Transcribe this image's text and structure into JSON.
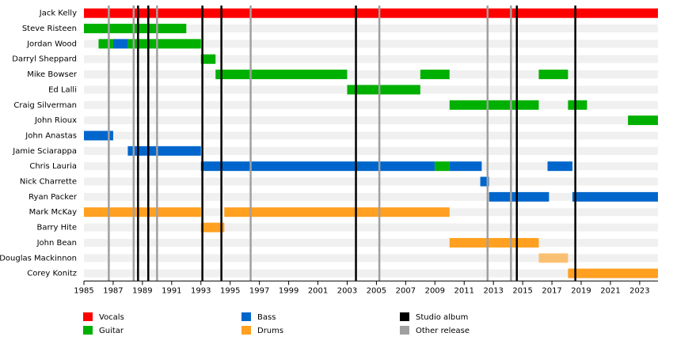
{
  "chart_data": {
    "type": "timeline",
    "xlim": [
      1985,
      2024.25
    ],
    "xticks": [
      1985,
      1987,
      1989,
      1991,
      1993,
      1995,
      1997,
      1999,
      2001,
      2003,
      2005,
      2007,
      2009,
      2011,
      2013,
      2015,
      2017,
      2019,
      2021,
      2023
    ],
    "roles": [
      {
        "name": "Vocals",
        "color": "#ff0000"
      },
      {
        "name": "Guitar",
        "color": "#00b000"
      },
      {
        "name": "Bass",
        "color": "#0066cc"
      },
      {
        "name": "Drums",
        "color": "#ffa020"
      }
    ],
    "events": [
      {
        "name": "Studio album",
        "color": "#000000",
        "x": [
          1988.7,
          1989.4,
          1993.1,
          1994.4,
          2003.6,
          2014.6,
          2018.6
        ]
      },
      {
        "name": "Other release",
        "color": "#a0a0a0",
        "x": [
          1986.7,
          1988.4,
          1990.0,
          1996.4,
          2005.2,
          2012.6,
          2014.2
        ]
      }
    ],
    "members": [
      {
        "name": "Jack Kelly",
        "segments": [
          {
            "role": "Vocals",
            "start": 1985,
            "end": 2024.25
          }
        ]
      },
      {
        "name": "Steve Risteen",
        "segments": [
          {
            "role": "Guitar",
            "start": 1985,
            "end": 1992
          }
        ]
      },
      {
        "name": "Jordan Wood",
        "segments": [
          {
            "role": "Guitar",
            "start": 1986,
            "end": 1987
          },
          {
            "role": "Bass",
            "start": 1987,
            "end": 1988
          },
          {
            "role": "Guitar",
            "start": 1988,
            "end": 1993
          }
        ]
      },
      {
        "name": "Darryl Sheppard",
        "segments": [
          {
            "role": "Guitar",
            "start": 1993,
            "end": 1994
          }
        ]
      },
      {
        "name": "Mike Bowser",
        "segments": [
          {
            "role": "Guitar",
            "start": 1994,
            "end": 2003
          },
          {
            "role": "Guitar",
            "start": 2008,
            "end": 2010
          },
          {
            "role": "Guitar",
            "start": 2016.1,
            "end": 2018.1
          }
        ]
      },
      {
        "name": "Ed Lalli",
        "segments": [
          {
            "role": "Guitar",
            "start": 2003,
            "end": 2008
          }
        ]
      },
      {
        "name": "Craig Silverman",
        "segments": [
          {
            "role": "Guitar",
            "start": 2010,
            "end": 2016.1
          },
          {
            "role": "Guitar",
            "start": 2018.1,
            "end": 2019.4
          }
        ]
      },
      {
        "name": "John Rioux",
        "segments": [
          {
            "role": "Guitar",
            "start": 2022.2,
            "end": 2024.25
          }
        ]
      },
      {
        "name": "John Anastas",
        "segments": [
          {
            "role": "Bass",
            "start": 1985,
            "end": 1987
          }
        ]
      },
      {
        "name": "Jamie Sciarappa",
        "segments": [
          {
            "role": "Bass",
            "start": 1988,
            "end": 1993
          }
        ]
      },
      {
        "name": "Chris Lauria",
        "segments": [
          {
            "role": "Bass",
            "start": 1993,
            "end": 2009
          },
          {
            "role": "Guitar",
            "start": 2009,
            "end": 2010
          },
          {
            "role": "Bass",
            "start": 2010,
            "end": 2012.2
          },
          {
            "role": "Bass",
            "start": 2016.7,
            "end": 2018.4
          }
        ]
      },
      {
        "name": "Nick Charrette",
        "segments": [
          {
            "role": "Bass",
            "start": 2012.1,
            "end": 2012.7
          }
        ]
      },
      {
        "name": "Ryan Packer",
        "segments": [
          {
            "role": "Bass",
            "start": 2012.7,
            "end": 2016.8
          },
          {
            "role": "Bass",
            "start": 2018.4,
            "end": 2024.25
          }
        ]
      },
      {
        "name": "Mark McKay",
        "segments": [
          {
            "role": "Drums",
            "start": 1985,
            "end": 1993
          },
          {
            "role": "Drums",
            "start": 1994.6,
            "end": 2010
          }
        ]
      },
      {
        "name": "Barry Hite",
        "segments": [
          {
            "role": "Drums",
            "start": 1993,
            "end": 1994.6
          }
        ]
      },
      {
        "name": "John Bean",
        "segments": [
          {
            "role": "Drums",
            "start": 2010,
            "end": 2016.1
          }
        ]
      },
      {
        "name": "Douglas Mackinnon",
        "segments": [
          {
            "role": "Drums",
            "start": 2016.1,
            "end": 2018.1,
            "faded": true
          }
        ]
      },
      {
        "name": "Corey Konitz",
        "segments": [
          {
            "role": "Drums",
            "start": 2018.1,
            "end": 2024.25
          }
        ]
      }
    ]
  }
}
